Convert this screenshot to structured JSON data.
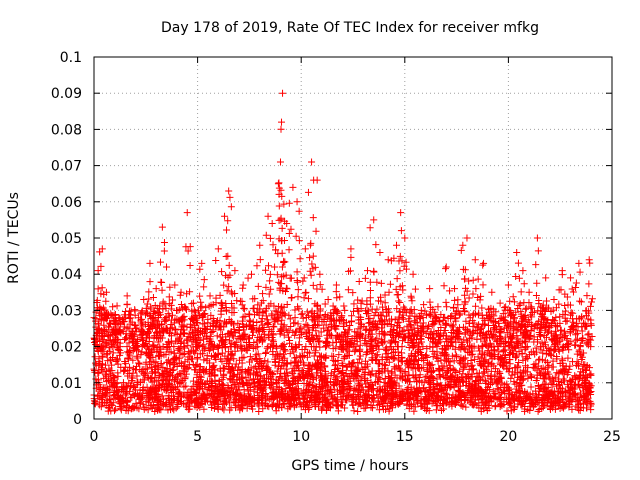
{
  "chart_data": {
    "type": "scatter",
    "title": "Day 178 of 2019, Rate Of TEC Index for receiver mfkg",
    "xlabel": "GPS time / hours",
    "ylabel": "ROTI / TECUs",
    "xlim": [
      0,
      25
    ],
    "ylim": [
      0,
      0.1
    ],
    "xticks": [
      0,
      5,
      10,
      15,
      20,
      25
    ],
    "xtick_labels": [
      "0",
      "5",
      "10",
      "15",
      "20",
      "25"
    ],
    "yticks": [
      0,
      0.01,
      0.02,
      0.03,
      0.04,
      0.05,
      0.06,
      0.07,
      0.08,
      0.09,
      0.1
    ],
    "ytick_labels": [
      "0",
      "0.01",
      "0.02",
      "0.03",
      "0.04",
      "0.05",
      "0.06",
      "0.07",
      "0.08",
      "0.09",
      "0.1"
    ],
    "grid": true,
    "marker": "+",
    "color": "#ff0000",
    "legend": "none",
    "series": [
      {
        "name": "ROTI",
        "points": [
          [
            0.0,
            0.028
          ],
          [
            0.2,
            0.041
          ],
          [
            0.4,
            0.047
          ],
          [
            0.6,
            0.035
          ],
          [
            0.9,
            0.031
          ],
          [
            1.2,
            0.028
          ],
          [
            1.6,
            0.034
          ],
          [
            2.0,
            0.025
          ],
          [
            2.4,
            0.033
          ],
          [
            2.7,
            0.043
          ],
          [
            3.0,
            0.036
          ],
          [
            3.3,
            0.053
          ],
          [
            3.5,
            0.042
          ],
          [
            3.9,
            0.037
          ],
          [
            4.2,
            0.035
          ],
          [
            4.5,
            0.057
          ],
          [
            4.8,
            0.032
          ],
          [
            5.2,
            0.043
          ],
          [
            5.6,
            0.034
          ],
          [
            6.0,
            0.047
          ],
          [
            6.3,
            0.056
          ],
          [
            6.5,
            0.063
          ],
          [
            6.8,
            0.041
          ],
          [
            7.2,
            0.037
          ],
          [
            7.6,
            0.04
          ],
          [
            8.0,
            0.048
          ],
          [
            8.4,
            0.056
          ],
          [
            8.6,
            0.054
          ],
          [
            8.9,
            0.065
          ],
          [
            9.0,
            0.071
          ],
          [
            9.05,
            0.082
          ],
          [
            9.1,
            0.09
          ],
          [
            9.3,
            0.054
          ],
          [
            9.6,
            0.064
          ],
          [
            9.8,
            0.06
          ],
          [
            10.2,
            0.047
          ],
          [
            10.5,
            0.071
          ],
          [
            10.6,
            0.066
          ],
          [
            10.9,
            0.04
          ],
          [
            11.3,
            0.033
          ],
          [
            11.7,
            0.037
          ],
          [
            12.1,
            0.03
          ],
          [
            12.4,
            0.047
          ],
          [
            12.8,
            0.038
          ],
          [
            13.2,
            0.041
          ],
          [
            13.5,
            0.055
          ],
          [
            13.8,
            0.046
          ],
          [
            14.2,
            0.044
          ],
          [
            14.6,
            0.048
          ],
          [
            14.8,
            0.057
          ],
          [
            15.0,
            0.05
          ],
          [
            15.4,
            0.04
          ],
          [
            15.8,
            0.03
          ],
          [
            16.2,
            0.036
          ],
          [
            16.6,
            0.031
          ],
          [
            17.0,
            0.042
          ],
          [
            17.4,
            0.036
          ],
          [
            17.8,
            0.048
          ],
          [
            18.0,
            0.05
          ],
          [
            18.4,
            0.044
          ],
          [
            18.8,
            0.043
          ],
          [
            19.2,
            0.035
          ],
          [
            19.6,
            0.032
          ],
          [
            20.0,
            0.037
          ],
          [
            20.4,
            0.046
          ],
          [
            20.7,
            0.041
          ],
          [
            21.0,
            0.035
          ],
          [
            21.4,
            0.05
          ],
          [
            21.8,
            0.039
          ],
          [
            22.2,
            0.033
          ],
          [
            22.6,
            0.041
          ],
          [
            23.0,
            0.039
          ],
          [
            23.4,
            0.043
          ],
          [
            23.9,
            0.044
          ]
        ],
        "dense_band": {
          "x_range": [
            0,
            24
          ],
          "y_min": 0.002,
          "y_typical_max": 0.028
        }
      }
    ]
  }
}
